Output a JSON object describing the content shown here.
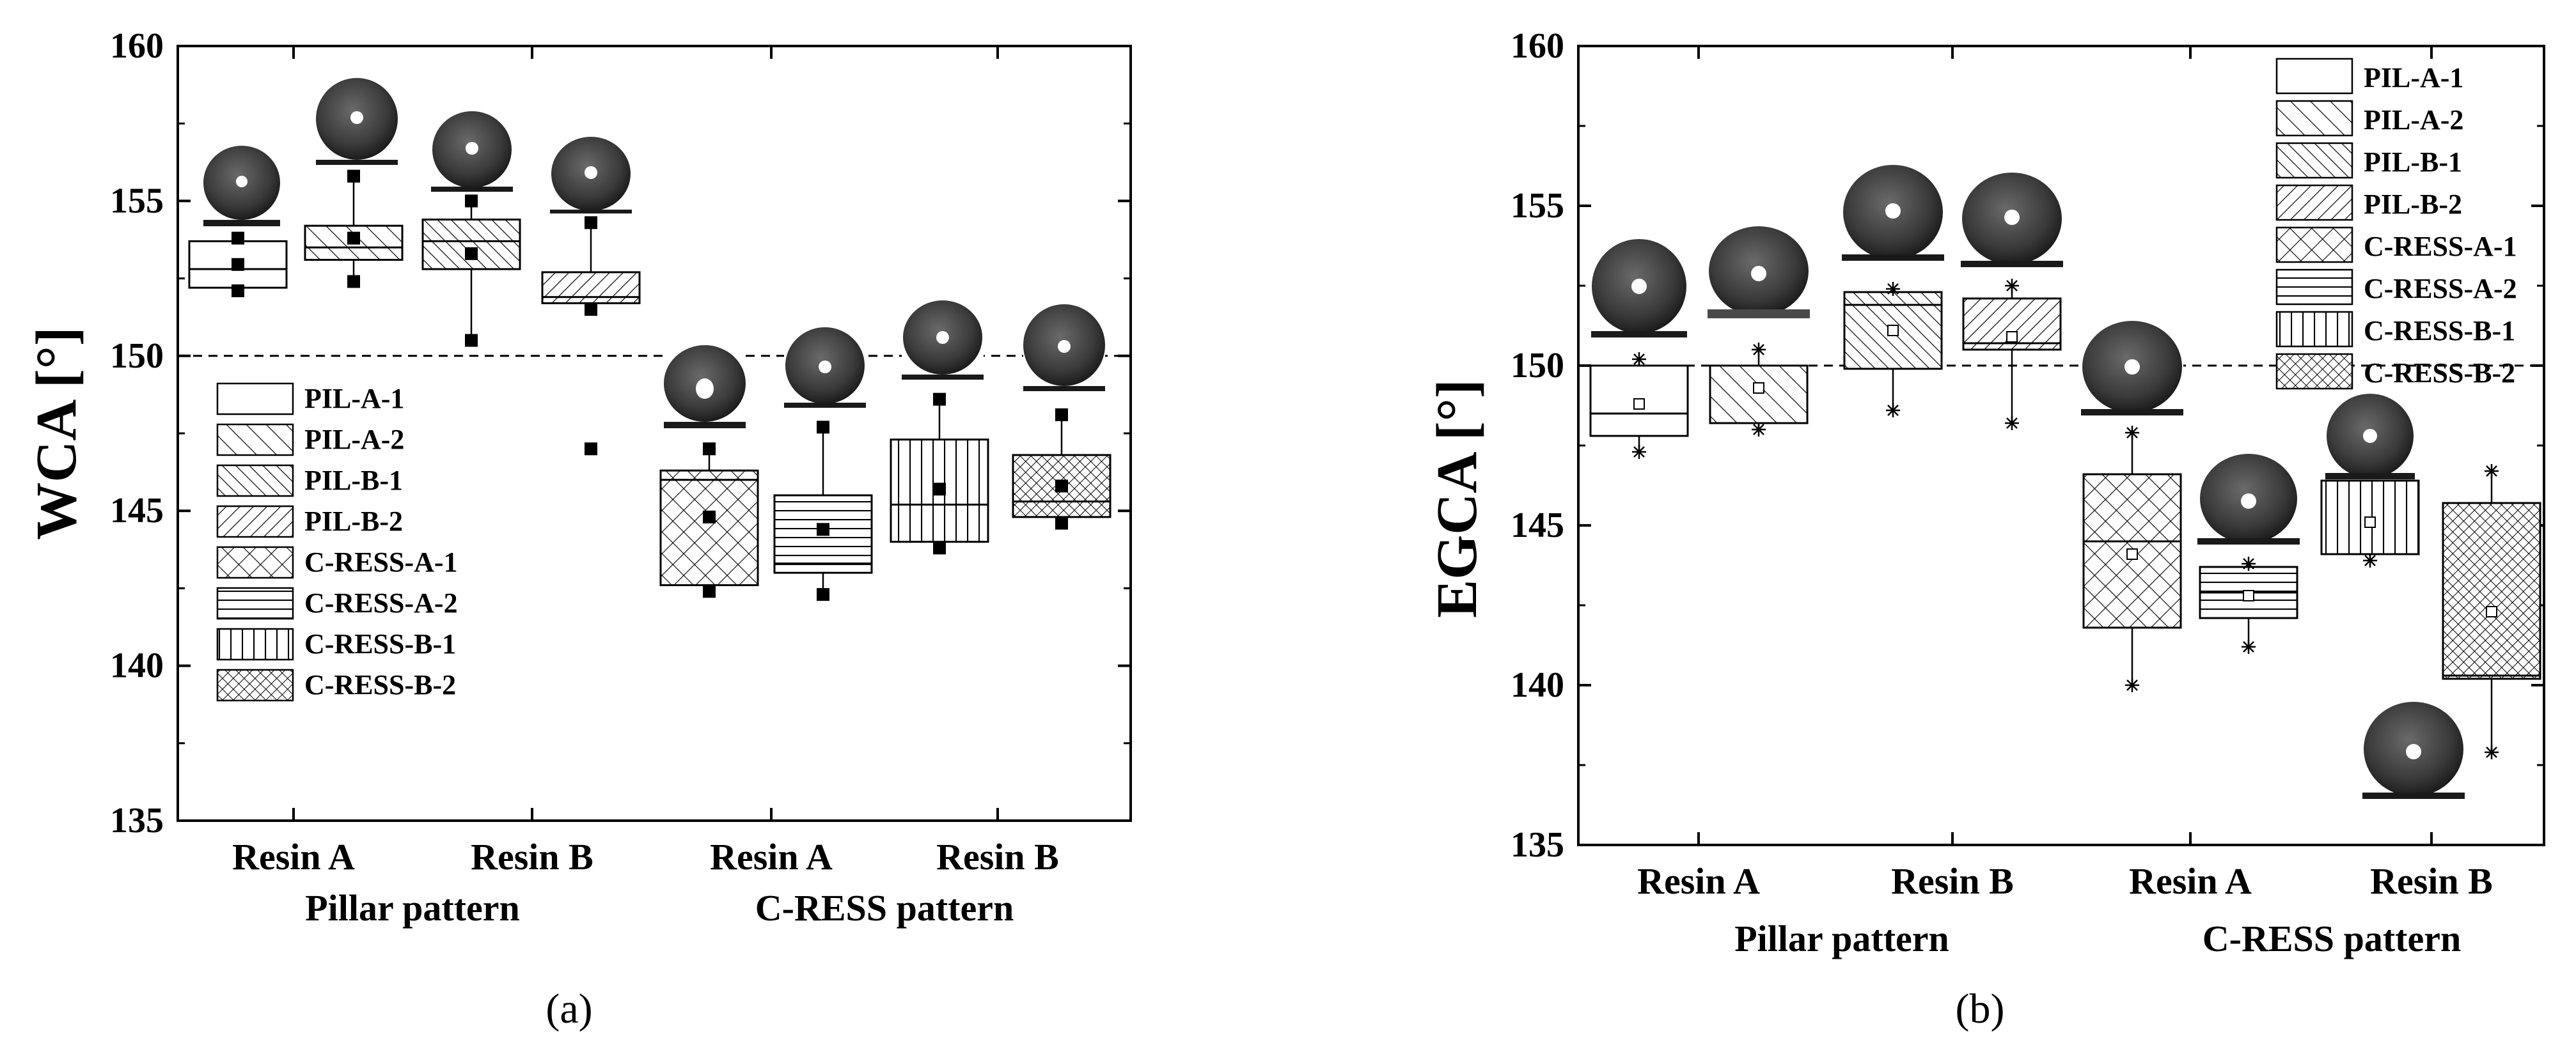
{
  "chart_data": [
    {
      "type": "box",
      "panel_label": "(a)",
      "ylabel": "WCA [°]",
      "ylim": [
        135,
        160
      ],
      "yticks": [
        135,
        140,
        145,
        150,
        155,
        160
      ],
      "reference_line": 150,
      "x_categories": [
        "Resin A",
        "Resin B",
        "Resin A",
        "Resin B"
      ],
      "x_groups": [
        "Pillar pattern",
        "C-RESS pattern"
      ],
      "legend": [
        "PIL-A-1",
        "PIL-A-2",
        "PIL-B-1",
        "PIL-B-2",
        "C-RESS-A-1",
        "C-RESS-A-2",
        "C-RESS-B-1",
        "C-RESS-B-2"
      ],
      "legend_position": "middle-left",
      "mean_marker": "filled-square",
      "series": [
        {
          "name": "PIL-A-1",
          "pattern": "none",
          "q1": 152.2,
          "median": 152.8,
          "q3": 153.7,
          "whisker_low": 152.1,
          "whisker_high": 153.8,
          "mean": 152.95,
          "outliers": [
            152.1,
            153.8
          ]
        },
        {
          "name": "PIL-A-2",
          "pattern": "diag-fwd",
          "q1": 153.1,
          "median": 153.5,
          "q3": 154.2,
          "whisker_low": 152.4,
          "whisker_high": 155.8,
          "mean": 153.8,
          "outliers": [
            152.4,
            155.8
          ]
        },
        {
          "name": "PIL-B-1",
          "pattern": "diag-fwd-dense",
          "q1": 152.8,
          "median": 153.7,
          "q3": 154.4,
          "whisker_low": 150.5,
          "whisker_high": 155.0,
          "mean": 153.3,
          "outliers": [
            150.5,
            155.0
          ]
        },
        {
          "name": "PIL-B-2",
          "pattern": "diag-back",
          "q1": 151.7,
          "median": 151.9,
          "q3": 152.7,
          "whisker_low": 151.5,
          "whisker_high": 154.3,
          "mean": 151.5,
          "outliers": [
            147.0,
            154.3
          ]
        },
        {
          "name": "C-RESS-A-1",
          "pattern": "crosshatch-diag",
          "q1": 142.6,
          "median": 146.0,
          "q3": 146.3,
          "whisker_low": 142.4,
          "whisker_high": 147.0,
          "mean": 144.8,
          "outliers": [
            142.4,
            147.0
          ]
        },
        {
          "name": "C-RESS-A-2",
          "pattern": "horizontal",
          "q1": 143.0,
          "median": 143.3,
          "q3": 145.5,
          "whisker_low": 142.3,
          "whisker_high": 147.7,
          "mean": 144.4,
          "outliers": [
            142.3,
            147.7
          ]
        },
        {
          "name": "C-RESS-B-1",
          "pattern": "vertical",
          "q1": 144.0,
          "median": 145.2,
          "q3": 147.3,
          "whisker_low": 143.8,
          "whisker_high": 148.6,
          "mean": 145.7,
          "outliers": [
            143.8,
            148.6
          ]
        },
        {
          "name": "C-RESS-B-2",
          "pattern": "crosshatch-fine",
          "q1": 144.8,
          "median": 145.3,
          "q3": 146.8,
          "whisker_low": 144.6,
          "whisker_high": 148.1,
          "mean": 145.8,
          "outliers": [
            144.6,
            148.1
          ]
        }
      ]
    },
    {
      "type": "box",
      "panel_label": "(b)",
      "ylabel": "EGCA [°]",
      "ylim": [
        135,
        160
      ],
      "yticks": [
        135,
        140,
        145,
        150,
        155,
        160
      ],
      "reference_line": 150,
      "x_categories": [
        "Resin A",
        "Resin B",
        "Resin A",
        "Resin B"
      ],
      "x_groups": [
        "Pillar pattern",
        "C-RESS pattern"
      ],
      "legend": [
        "PIL-A-1",
        "PIL-A-2",
        "PIL-B-1",
        "PIL-B-2",
        "C-RESS-A-1",
        "C-RESS-A-2",
        "C-RESS-B-1",
        "C-RESS-B-2"
      ],
      "legend_position": "top-right",
      "mean_marker": "open-square",
      "series": [
        {
          "name": "PIL-A-1",
          "pattern": "none",
          "q1": 147.8,
          "median": 148.5,
          "q3": 150.0,
          "whisker_low": 147.3,
          "whisker_high": 150.2,
          "mean": 148.8,
          "outliers": [
            147.3,
            150.2
          ]
        },
        {
          "name": "PIL-A-2",
          "pattern": "diag-fwd",
          "q1": 148.2,
          "median": 148.2,
          "q3": 150.0,
          "whisker_low": 148.0,
          "whisker_high": 150.5,
          "mean": 149.3,
          "outliers": [
            148.0,
            150.5
          ]
        },
        {
          "name": "PIL-B-1",
          "pattern": "diag-fwd-dense",
          "q1": 149.9,
          "median": 151.9,
          "q3": 152.3,
          "whisker_low": 148.6,
          "whisker_high": 152.4,
          "mean": 151.1,
          "outliers": [
            148.6,
            152.4
          ]
        },
        {
          "name": "PIL-B-2",
          "pattern": "diag-back",
          "q1": 150.5,
          "median": 150.7,
          "q3": 152.1,
          "whisker_low": 148.2,
          "whisker_high": 152.5,
          "mean": 150.9,
          "outliers": [
            148.2,
            152.5
          ]
        },
        {
          "name": "C-RESS-A-1",
          "pattern": "crosshatch-diag",
          "q1": 141.8,
          "median": 144.5,
          "q3": 146.6,
          "whisker_low": 140.0,
          "whisker_high": 147.9,
          "mean": 144.1,
          "outliers": [
            140.0,
            147.9
          ]
        },
        {
          "name": "C-RESS-A-2",
          "pattern": "horizontal",
          "q1": 142.1,
          "median": 142.9,
          "q3": 143.7,
          "whisker_low": 141.2,
          "whisker_high": 143.8,
          "mean": 142.8,
          "outliers": [
            141.2,
            143.8
          ]
        },
        {
          "name": "C-RESS-B-1",
          "pattern": "vertical",
          "q1": 144.1,
          "median": 146.4,
          "q3": 146.4,
          "whisker_low": 143.9,
          "whisker_high": 146.4,
          "mean": 145.1,
          "outliers": [
            143.9
          ]
        },
        {
          "name": "C-RESS-B-2",
          "pattern": "crosshatch-fine",
          "q1": 140.2,
          "median": 140.3,
          "q3": 145.7,
          "whisker_low": 137.9,
          "whisker_high": 146.7,
          "mean": 142.3,
          "outliers": [
            137.9,
            146.7
          ]
        }
      ]
    }
  ]
}
